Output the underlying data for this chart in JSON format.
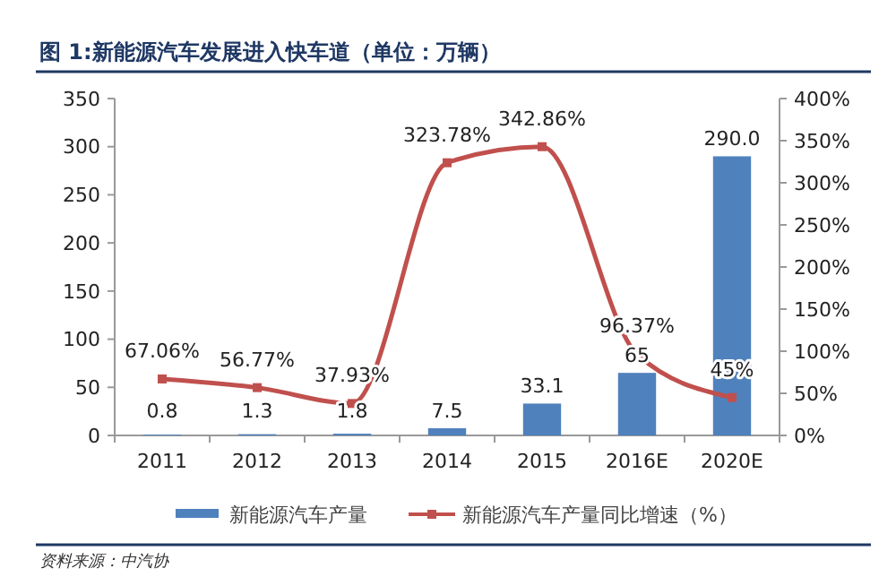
{
  "chart_data": {
    "type": "bar",
    "title": "图 1:新能源汽车发展进入快车道（单位：万辆）",
    "categories": [
      "2011",
      "2012",
      "2013",
      "2014",
      "2015",
      "2016E",
      "2020E"
    ],
    "series": [
      {
        "name": "新能源汽车产量",
        "color": "#4f81bd",
        "values": [
          0.8,
          1.3,
          1.8,
          7.5,
          33.1,
          65,
          290.0
        ],
        "value_labels": [
          "0.8",
          "1.3",
          "1.8",
          "7.5",
          "33.1",
          "65",
          "290.0"
        ]
      },
      {
        "name": "新能源汽车产量同比增速（%）",
        "type": "line",
        "axis": "y2",
        "color": "#c0504d",
        "values": [
          67.06,
          56.77,
          37.93,
          323.78,
          342.86,
          96.37,
          45
        ],
        "value_labels": [
          "67.06%",
          "56.77%",
          "37.93%",
          "323.78%",
          "342.86%",
          "96.37%",
          "45%"
        ]
      }
    ],
    "ylim": [
      0,
      350
    ],
    "yticks": [
      0,
      50,
      100,
      150,
      200,
      250,
      300,
      350
    ],
    "y2lim": [
      0,
      400
    ],
    "y2ticks": [
      {
        "value": 0,
        "label": "0%"
      },
      {
        "value": 50,
        "label": "50%"
      },
      {
        "value": 100,
        "label": "100%"
      },
      {
        "value": 150,
        "label": "150%"
      },
      {
        "value": 200,
        "label": "200%"
      },
      {
        "value": 250,
        "label": "250%"
      },
      {
        "value": 300,
        "label": "300%"
      },
      {
        "value": 350,
        "label": "350%"
      },
      {
        "value": 400,
        "label": "400%"
      }
    ],
    "legend": "bottom",
    "marker": "square",
    "line_style": "solid",
    "grid": false,
    "annotations": [
      "资料来源：中汽协"
    ]
  }
}
